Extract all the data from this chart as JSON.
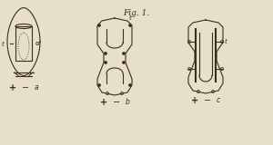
{
  "title": "Fig. 1.",
  "title_fontsize": 6.5,
  "title_style": "italic",
  "bg_color": "#e8dfc8",
  "line_color": "#3a2e1e",
  "label_a": "a",
  "label_b": "b",
  "label_c": "c",
  "label_t": "t",
  "plus": "+",
  "minus": "−",
  "fig_width": 3.0,
  "fig_height": 1.6,
  "dpi": 100
}
